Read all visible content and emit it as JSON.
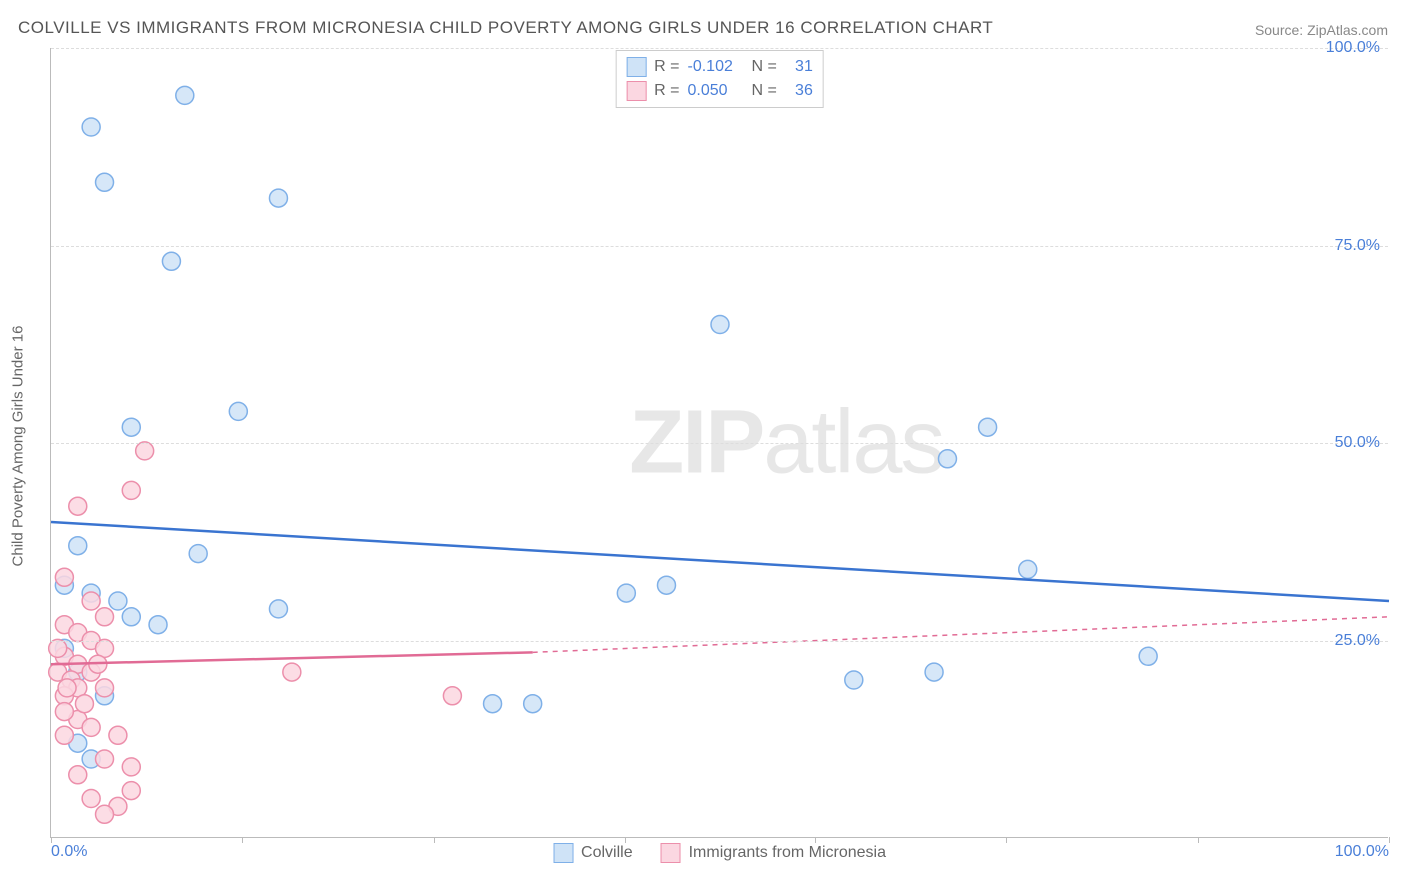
{
  "title": "COLVILLE VS IMMIGRANTS FROM MICRONESIA CHILD POVERTY AMONG GIRLS UNDER 16 CORRELATION CHART",
  "source": "Source: ZipAtlas.com",
  "watermark_a": "ZIP",
  "watermark_b": "atlas",
  "y_axis_label": "Child Poverty Among Girls Under 16",
  "chart": {
    "type": "scatter",
    "xlim": [
      0,
      100
    ],
    "ylim": [
      0,
      100
    ],
    "y_ticks": [
      25,
      50,
      75,
      100
    ],
    "y_tick_labels": [
      "25.0%",
      "50.0%",
      "75.0%",
      "100.0%"
    ],
    "x_ticks": [
      0,
      14.3,
      28.6,
      42.9,
      57.1,
      71.4,
      85.7,
      100
    ],
    "x_tick_labels_shown": {
      "0": "0.0%",
      "100": "100.0%"
    },
    "background_color": "#ffffff",
    "grid_color": "#dddddd",
    "marker_radius": 9,
    "marker_stroke_width": 1.5,
    "line_width": 2.5,
    "series": [
      {
        "name": "Colville",
        "fill": "#cfe3f7",
        "stroke": "#7fb0e8",
        "line_color": "#3a74d0",
        "R": "-0.102",
        "N": "31",
        "trend": {
          "x1": 0,
          "y1": 40,
          "x2": 100,
          "y2": 30
        },
        "points": [
          {
            "x": 3,
            "y": 90
          },
          {
            "x": 10,
            "y": 94
          },
          {
            "x": 4,
            "y": 83
          },
          {
            "x": 17,
            "y": 81
          },
          {
            "x": 9,
            "y": 73
          },
          {
            "x": 6,
            "y": 52
          },
          {
            "x": 14,
            "y": 54
          },
          {
            "x": 50,
            "y": 65
          },
          {
            "x": 70,
            "y": 52
          },
          {
            "x": 67,
            "y": 48
          },
          {
            "x": 2,
            "y": 37
          },
          {
            "x": 11,
            "y": 36
          },
          {
            "x": 1,
            "y": 32
          },
          {
            "x": 3,
            "y": 31
          },
          {
            "x": 17,
            "y": 29
          },
          {
            "x": 5,
            "y": 30
          },
          {
            "x": 6,
            "y": 28
          },
          {
            "x": 8,
            "y": 27
          },
          {
            "x": 43,
            "y": 31
          },
          {
            "x": 46,
            "y": 32
          },
          {
            "x": 73,
            "y": 34
          },
          {
            "x": 60,
            "y": 20
          },
          {
            "x": 66,
            "y": 21
          },
          {
            "x": 82,
            "y": 23
          },
          {
            "x": 2,
            "y": 21
          },
          {
            "x": 4,
            "y": 18
          },
          {
            "x": 33,
            "y": 17
          },
          {
            "x": 36,
            "y": 17
          },
          {
            "x": 2,
            "y": 12
          },
          {
            "x": 3,
            "y": 10
          },
          {
            "x": 1,
            "y": 24
          }
        ]
      },
      {
        "name": "Immigrants from Micronesia",
        "fill": "#fbd7e1",
        "stroke": "#ec8fab",
        "line_color": "#e16b95",
        "R": "0.050",
        "N": "36",
        "trend_solid": {
          "x1": 0,
          "y1": 22,
          "x2": 36,
          "y2": 23.5
        },
        "trend_dash": {
          "x1": 36,
          "y1": 23.5,
          "x2": 100,
          "y2": 28
        },
        "points": [
          {
            "x": 7,
            "y": 49
          },
          {
            "x": 6,
            "y": 44
          },
          {
            "x": 2,
            "y": 42
          },
          {
            "x": 1,
            "y": 33
          },
          {
            "x": 3,
            "y": 30
          },
          {
            "x": 4,
            "y": 28
          },
          {
            "x": 1,
            "y": 27
          },
          {
            "x": 2,
            "y": 26
          },
          {
            "x": 3,
            "y": 25
          },
          {
            "x": 4,
            "y": 24
          },
          {
            "x": 1,
            "y": 23
          },
          {
            "x": 2,
            "y": 22
          },
          {
            "x": 0.5,
            "y": 21
          },
          {
            "x": 1.5,
            "y": 20
          },
          {
            "x": 3,
            "y": 21
          },
          {
            "x": 2,
            "y": 19
          },
          {
            "x": 1,
            "y": 18
          },
          {
            "x": 4,
            "y": 19
          },
          {
            "x": 18,
            "y": 21
          },
          {
            "x": 30,
            "y": 18
          },
          {
            "x": 2,
            "y": 15
          },
          {
            "x": 3,
            "y": 14
          },
          {
            "x": 5,
            "y": 13
          },
          {
            "x": 1,
            "y": 13
          },
          {
            "x": 4,
            "y": 10
          },
          {
            "x": 6,
            "y": 9
          },
          {
            "x": 2,
            "y": 8
          },
          {
            "x": 3,
            "y": 5
          },
          {
            "x": 5,
            "y": 4
          },
          {
            "x": 4,
            "y": 3
          },
          {
            "x": 6,
            "y": 6
          },
          {
            "x": 1,
            "y": 16
          },
          {
            "x": 0.5,
            "y": 24
          },
          {
            "x": 2.5,
            "y": 17
          },
          {
            "x": 3.5,
            "y": 22
          },
          {
            "x": 1.2,
            "y": 19
          }
        ]
      }
    ]
  },
  "legend_top": [
    {
      "swatch_fill": "#cfe3f7",
      "swatch_stroke": "#7fb0e8",
      "R_label": "R =",
      "R": "-0.102",
      "N_label": "N =",
      "N": "31"
    },
    {
      "swatch_fill": "#fbd7e1",
      "swatch_stroke": "#ec8fab",
      "R_label": "R =",
      "R": "0.050",
      "N_label": "N =",
      "N": "36"
    }
  ],
  "legend_bottom": [
    {
      "swatch_fill": "#cfe3f7",
      "swatch_stroke": "#7fb0e8",
      "label": "Colville"
    },
    {
      "swatch_fill": "#fbd7e1",
      "swatch_stroke": "#ec8fab",
      "label": "Immigrants from Micronesia"
    }
  ]
}
